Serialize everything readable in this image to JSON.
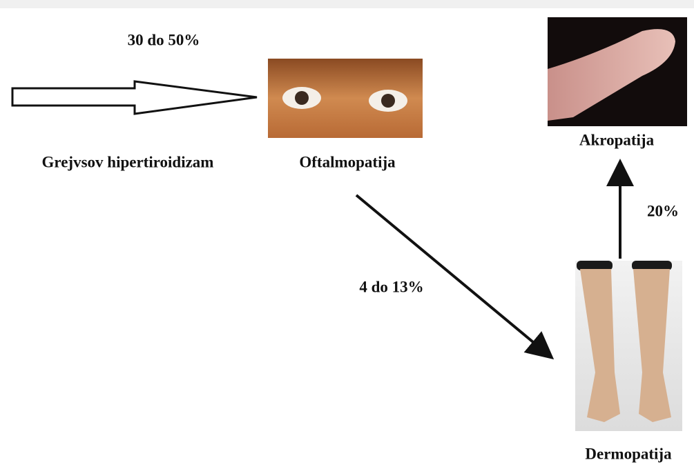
{
  "nodes": [
    {
      "label": "Grejvsov hipertiroidizam"
    },
    {
      "label": "Oftalmopatija"
    },
    {
      "label": "Akropatija"
    },
    {
      "label": "Dermopatija"
    }
  ],
  "edges": [
    {
      "label": "30 do 50%"
    },
    {
      "label": "4 do 13%"
    },
    {
      "label": "20%"
    }
  ]
}
